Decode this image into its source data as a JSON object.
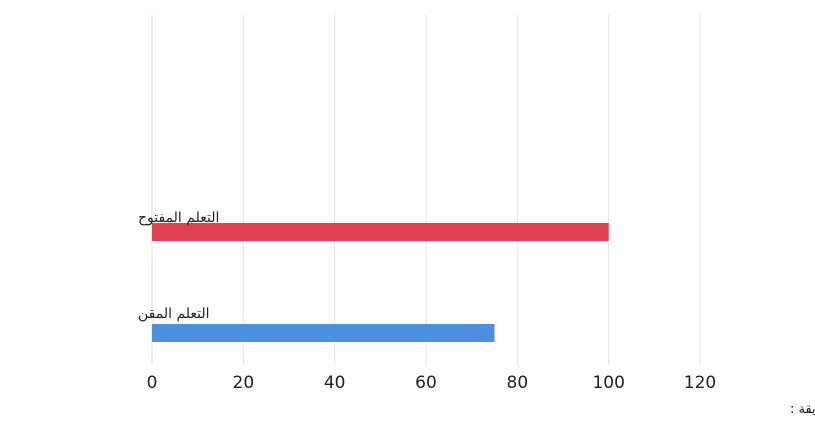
{
  "chart_data": {
    "type": "bar",
    "orientation": "horizontal",
    "categories": [
      "التعلم المفتوح",
      "التعلم المقن"
    ],
    "values": [
      100,
      75
    ],
    "colors": [
      "#e0424f",
      "#4f8fe0"
    ],
    "xlim": [
      0,
      120
    ],
    "xticks": [
      0,
      20,
      40,
      60,
      80,
      100,
      120
    ],
    "xlabel": "نسبة رضا الطلاب عن التعلم بهذه الطريقة :",
    "title": "",
    "grid": true
  }
}
